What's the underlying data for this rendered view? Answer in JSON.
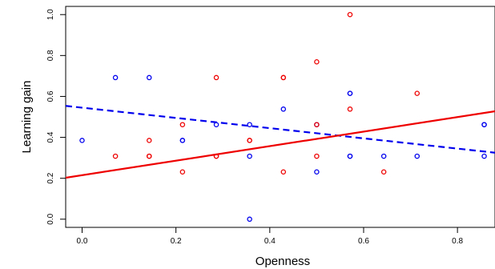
{
  "chart_data": {
    "type": "scatter",
    "title": "",
    "xlabel": "Openness",
    "ylabel": "Learning gain",
    "xlim": [
      -0.035,
      0.88
    ],
    "ylim": [
      -0.04,
      1.04
    ],
    "x_ticks": [
      "0.0",
      "0.2",
      "0.4",
      "0.6",
      "0.8"
    ],
    "x_tick_values": [
      0,
      0.2,
      0.4,
      0.6,
      0.8
    ],
    "y_ticks": [
      "0.0",
      "0.2",
      "0.4",
      "0.6",
      "0.8",
      "1.0"
    ],
    "y_tick_values": [
      0,
      0.2,
      0.4,
      0.6,
      0.8,
      1.0
    ],
    "grid": false,
    "legend": "none",
    "series": [
      {
        "color": "#0000ee",
        "points": [
          [
            0.0,
            0.385
          ],
          [
            0.071,
            0.692
          ],
          [
            0.143,
            0.692
          ],
          [
            0.214,
            0.385
          ],
          [
            0.214,
            0.385
          ],
          [
            0.286,
            0.462
          ],
          [
            0.357,
            0.462
          ],
          [
            0.357,
            0.308
          ],
          [
            0.357,
            0.0
          ],
          [
            0.429,
            0.538
          ],
          [
            0.5,
            0.462
          ],
          [
            0.5,
            0.231
          ],
          [
            0.571,
            0.615
          ],
          [
            0.571,
            0.615
          ],
          [
            0.571,
            0.308
          ],
          [
            0.571,
            0.308
          ],
          [
            0.643,
            0.308
          ],
          [
            0.714,
            0.308
          ],
          [
            0.857,
            0.462
          ],
          [
            0.857,
            0.462
          ],
          [
            0.857,
            0.308
          ]
        ],
        "fit": {
          "intercept": 0.545,
          "slope": -0.25,
          "style": "dashed"
        }
      },
      {
        "color": "#ee0000",
        "points": [
          [
            0.071,
            0.308
          ],
          [
            0.143,
            0.385
          ],
          [
            0.143,
            0.308
          ],
          [
            0.143,
            0.308
          ],
          [
            0.214,
            0.462
          ],
          [
            0.214,
            0.231
          ],
          [
            0.286,
            0.692
          ],
          [
            0.286,
            0.308
          ],
          [
            0.286,
            0.308
          ],
          [
            0.357,
            0.385
          ],
          [
            0.357,
            0.385
          ],
          [
            0.429,
            0.692
          ],
          [
            0.429,
            0.692
          ],
          [
            0.429,
            0.231
          ],
          [
            0.5,
            0.769
          ],
          [
            0.5,
            0.462
          ],
          [
            0.5,
            0.308
          ],
          [
            0.571,
            1.0
          ],
          [
            0.571,
            0.538
          ],
          [
            0.643,
            0.231
          ],
          [
            0.714,
            0.615
          ]
        ],
        "fit": {
          "intercept": 0.215,
          "slope": 0.355,
          "style": "solid"
        }
      }
    ]
  }
}
